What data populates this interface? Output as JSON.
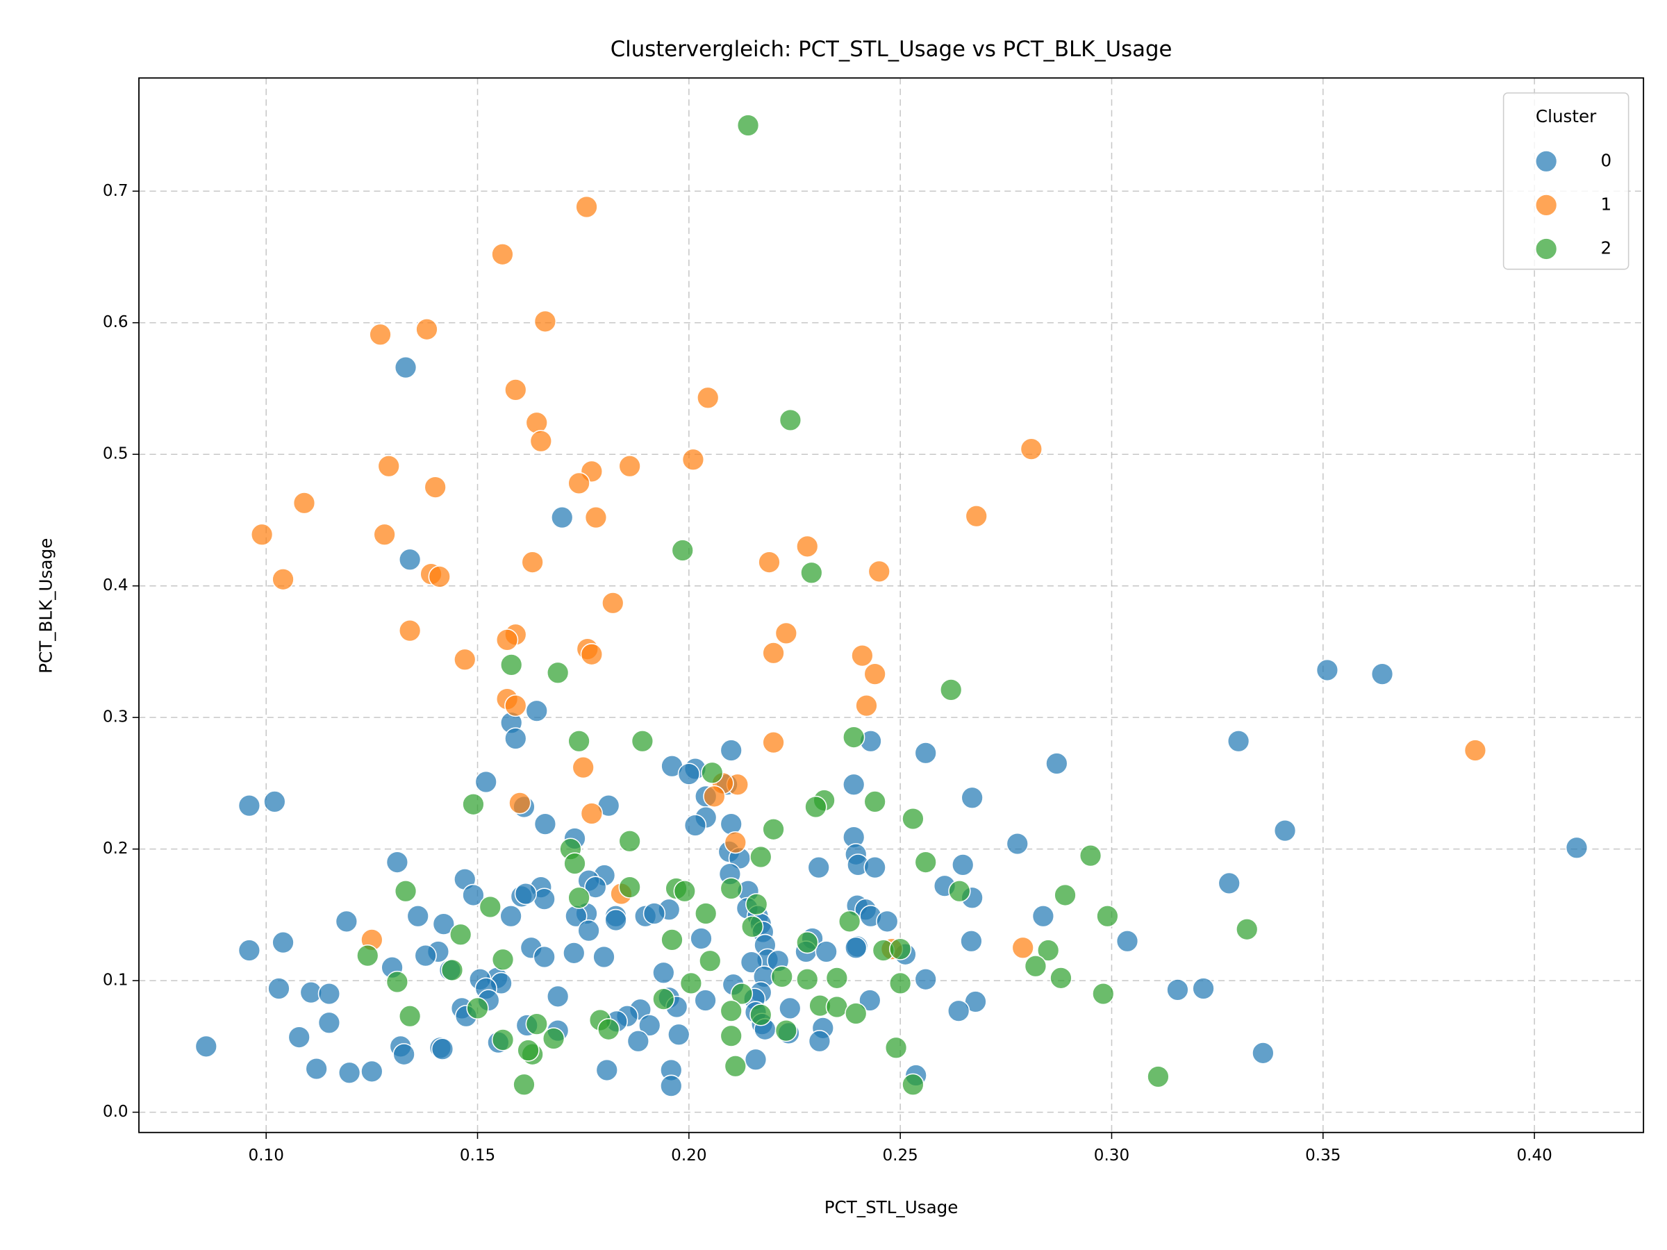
{
  "chart_data": {
    "type": "scatter",
    "title": "Clustervergleich: PCT_STL_Usage vs PCT_BLK_Usage",
    "x_label": "PCT_STL_Usage",
    "y_label": "PCT_BLK_Usage",
    "legend_title": "Cluster",
    "legend": "upper right",
    "grid": true,
    "xlim": [
      0.0699,
      0.4258
    ],
    "ylim": [
      -0.0154,
      0.786
    ],
    "xticks": [
      {
        "value": 0.1,
        "label": "0.10"
      },
      0.15,
      {
        "value": 0.2,
        "label": "0.20"
      },
      0.25,
      {
        "value": 0.3,
        "label": "0.30"
      },
      0.35,
      {
        "value": 0.4,
        "label": "0.40"
      }
    ],
    "yticks": [
      {
        "value": 0,
        "label": "0.0"
      },
      0.1,
      0.2,
      0.3,
      0.4,
      0.5,
      0.6,
      0.7
    ],
    "series": [
      {
        "name": "0",
        "color": "#1f77b4",
        "x": [
          0.133,
          0.17,
          0.134,
          0.351,
          0.364,
          0.164,
          0.158,
          0.159,
          0.33,
          0.21,
          0.243,
          0.256,
          0.287,
          0.196,
          0.2015,
          0.2,
          0.152,
          0.209,
          0.239,
          0.267,
          0.102,
          0.096,
          0.161,
          0.181,
          0.204,
          0.204,
          0.166,
          0.21,
          0.2015,
          0.341,
          0.173,
          0.239,
          0.2777,
          0.41,
          0.2095,
          0.2395,
          0.212,
          0.131,
          0.24,
          0.244,
          0.2307,
          0.2648,
          0.2097,
          0.18,
          0.1763,
          0.147,
          0.3278,
          0.2605,
          0.165,
          0.1779,
          0.214,
          0.149,
          0.267,
          0.1658,
          0.1604,
          0.1614,
          0.2398,
          0.2138,
          0.1953,
          0.2418,
          0.1758,
          0.1827,
          0.1579,
          0.1733,
          0.1359,
          0.1897,
          0.1918,
          0.243,
          0.2163,
          0.2469,
          0.2838,
          0.1827,
          0.217,
          0.119,
          0.142,
          0.1763,
          0.2175,
          0.2292,
          0.2029,
          0.3037,
          0.2668,
          0.104,
          0.1627,
          0.218,
          0.2398,
          0.2395,
          0.096,
          0.1407,
          0.1728,
          0.2277,
          0.2325,
          0.1377,
          0.2512,
          0.1658,
          0.1799,
          0.2186,
          0.2211,
          0.2148,
          0.1298,
          0.1435,
          0.194,
          0.1546,
          0.1506,
          0.2178,
          0.1556,
          0.256,
          0.152,
          0.103,
          0.3156,
          0.3217,
          0.2105,
          0.1106,
          0.1149,
          0.217,
          0.2155,
          0.1953,
          0.169,
          0.2039,
          0.2678,
          0.2428,
          0.1526,
          0.1971,
          0.1885,
          0.2239,
          0.2638,
          0.1463,
          0.1854,
          0.1473,
          0.2158,
          0.1829,
          0.1907,
          0.1149,
          0.2173,
          0.2317,
          0.1617,
          0.169,
          0.218,
          0.1976,
          0.2236,
          0.1078,
          0.188,
          0.2309,
          0.1549,
          0.0858,
          0.1318,
          0.1412,
          0.1326,
          0.3358,
          0.2158,
          0.1119,
          0.125,
          0.1806,
          0.1958,
          0.1197,
          0.2537,
          0.1958,
          0.1417
        ],
        "values": [
          0.566,
          0.452,
          0.42,
          0.336,
          0.333,
          0.305,
          0.296,
          0.284,
          0.282,
          0.275,
          0.282,
          0.273,
          0.265,
          0.263,
          0.261,
          0.257,
          0.251,
          0.249,
          0.249,
          0.239,
          0.236,
          0.233,
          0.232,
          0.233,
          0.24,
          0.224,
          0.219,
          0.219,
          0.218,
          0.214,
          0.208,
          0.209,
          0.204,
          0.201,
          0.198,
          0.196,
          0.193,
          0.19,
          0.188,
          0.186,
          0.186,
          0.188,
          0.181,
          0.18,
          0.176,
          0.177,
          0.174,
          0.172,
          0.171,
          0.171,
          0.168,
          0.165,
          0.163,
          0.162,
          0.164,
          0.166,
          0.157,
          0.155,
          0.154,
          0.154,
          0.151,
          0.149,
          0.149,
          0.149,
          0.149,
          0.149,
          0.151,
          0.149,
          0.149,
          0.145,
          0.149,
          0.146,
          0.143,
          0.145,
          0.143,
          0.138,
          0.137,
          0.132,
          0.132,
          0.13,
          0.13,
          0.129,
          0.125,
          0.127,
          0.126,
          0.125,
          0.123,
          0.122,
          0.121,
          0.122,
          0.122,
          0.119,
          0.12,
          0.118,
          0.118,
          0.116,
          0.115,
          0.114,
          0.11,
          0.108,
          0.106,
          0.102,
          0.101,
          0.103,
          0.098,
          0.101,
          0.094,
          0.094,
          0.093,
          0.094,
          0.097,
          0.091,
          0.09,
          0.091,
          0.086,
          0.087,
          0.088,
          0.085,
          0.084,
          0.085,
          0.085,
          0.08,
          0.078,
          0.079,
          0.077,
          0.079,
          0.073,
          0.073,
          0.076,
          0.069,
          0.066,
          0.068,
          0.067,
          0.064,
          0.066,
          0.062,
          0.063,
          0.059,
          0.06,
          0.057,
          0.054,
          0.054,
          0.053,
          0.05,
          0.05,
          0.049,
          0.044,
          0.045,
          0.04,
          0.033,
          0.031,
          0.032,
          0.032,
          0.03,
          0.028,
          0.02,
          0.048
        ]
      },
      {
        "name": "1",
        "color": "#ff7f0e",
        "x": [
          0.1758,
          0.1559,
          0.166,
          0.127,
          0.138,
          0.159,
          0.2045,
          0.164,
          0.165,
          0.281,
          0.129,
          0.186,
          0.201,
          0.177,
          0.174,
          0.14,
          0.109,
          0.178,
          0.268,
          0.099,
          0.128,
          0.228,
          0.163,
          0.219,
          0.139,
          0.141,
          0.245,
          0.104,
          0.182,
          0.134,
          0.223,
          0.159,
          0.157,
          0.176,
          0.177,
          0.22,
          0.241,
          0.147,
          0.244,
          0.157,
          0.159,
          0.242,
          0.22,
          0.386,
          0.175,
          0.2115,
          0.208,
          0.206,
          0.16,
          0.177,
          0.211,
          0.125,
          0.279,
          0.184,
          0.248
        ],
        "values": [
          0.688,
          0.652,
          0.601,
          0.591,
          0.595,
          0.549,
          0.543,
          0.524,
          0.51,
          0.504,
          0.491,
          0.491,
          0.496,
          0.487,
          0.478,
          0.475,
          0.463,
          0.452,
          0.453,
          0.439,
          0.439,
          0.43,
          0.418,
          0.418,
          0.409,
          0.407,
          0.411,
          0.405,
          0.387,
          0.366,
          0.364,
          0.363,
          0.359,
          0.352,
          0.348,
          0.349,
          0.347,
          0.344,
          0.333,
          0.314,
          0.309,
          0.309,
          0.281,
          0.275,
          0.262,
          0.249,
          0.25,
          0.24,
          0.235,
          0.227,
          0.205,
          0.131,
          0.125,
          0.166,
          0.124
        ]
      },
      {
        "name": "2",
        "color": "#2ca02c",
        "x": [
          0.214,
          0.224,
          0.1985,
          0.229,
          0.169,
          0.158,
          0.262,
          0.239,
          0.174,
          0.189,
          0.2055,
          0.232,
          0.244,
          0.149,
          0.23,
          0.253,
          0.22,
          0.172,
          0.186,
          0.295,
          0.217,
          0.256,
          0.173,
          0.133,
          0.186,
          0.197,
          0.199,
          0.21,
          0.264,
          0.289,
          0.174,
          0.153,
          0.216,
          0.204,
          0.299,
          0.238,
          0.215,
          0.332,
          0.146,
          0.196,
          0.228,
          0.246,
          0.25,
          0.285,
          0.124,
          0.156,
          0.205,
          0.282,
          0.144,
          0.222,
          0.288,
          0.131,
          0.2005,
          0.228,
          0.235,
          0.25,
          0.2125,
          0.298,
          0.194,
          0.15,
          0.231,
          0.235,
          0.21,
          0.217,
          0.2395,
          0.134,
          0.179,
          0.223,
          0.164,
          0.181,
          0.168,
          0.21,
          0.156,
          0.163,
          0.249,
          0.162,
          0.211,
          0.311,
          0.253,
          0.161
        ],
        "values": [
          0.75,
          0.526,
          0.427,
          0.41,
          0.334,
          0.34,
          0.321,
          0.285,
          0.282,
          0.282,
          0.258,
          0.237,
          0.236,
          0.234,
          0.232,
          0.223,
          0.215,
          0.2,
          0.206,
          0.195,
          0.194,
          0.19,
          0.189,
          0.168,
          0.171,
          0.17,
          0.168,
          0.17,
          0.168,
          0.165,
          0.163,
          0.156,
          0.158,
          0.151,
          0.149,
          0.145,
          0.141,
          0.139,
          0.135,
          0.131,
          0.129,
          0.123,
          0.124,
          0.123,
          0.119,
          0.116,
          0.115,
          0.111,
          0.108,
          0.103,
          0.102,
          0.099,
          0.098,
          0.101,
          0.102,
          0.098,
          0.09,
          0.09,
          0.086,
          0.079,
          0.081,
          0.08,
          0.077,
          0.074,
          0.075,
          0.073,
          0.07,
          0.062,
          0.067,
          0.063,
          0.056,
          0.058,
          0.055,
          0.044,
          0.049,
          0.047,
          0.035,
          0.027,
          0.021,
          0.021
        ]
      }
    ]
  }
}
